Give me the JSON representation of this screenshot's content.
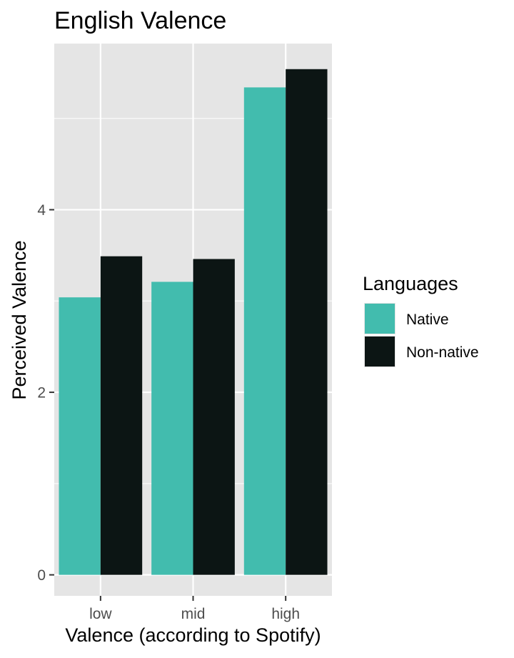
{
  "chart_data": {
    "type": "bar",
    "title": "English Valence",
    "xlabel": "Valence (according to Spotify)",
    "ylabel": "Perceived Valence",
    "categories": [
      "low",
      "mid",
      "high"
    ],
    "series": [
      {
        "name": "Native",
        "values": [
          3.04,
          3.21,
          5.34
        ],
        "color": "#42BCAE"
      },
      {
        "name": "Non-native",
        "values": [
          3.49,
          3.46,
          5.54
        ],
        "color": "#0C1514"
      }
    ],
    "ylim": [
      -0.23,
      5.82
    ],
    "yticks": [
      0,
      2,
      4
    ],
    "y_minor_ticks": [
      1,
      3,
      5
    ],
    "grid": true,
    "legend": {
      "title": "Languages",
      "placement": "right"
    },
    "colors": {
      "panel": "#E5E5E5",
      "grid": "#FFFFFF",
      "tick": "#333333"
    }
  }
}
